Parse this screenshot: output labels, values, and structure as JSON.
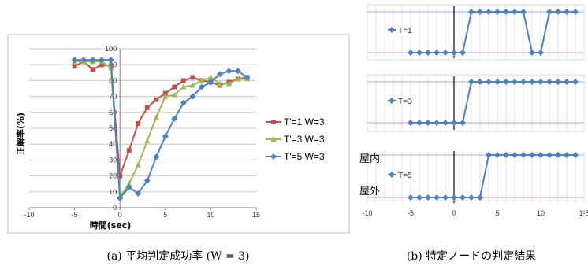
{
  "chart_data": [
    {
      "type": "line",
      "title": "",
      "xlabel": "時間(sec)",
      "ylabel": "正解率(%)",
      "xlim": [
        -10,
        15
      ],
      "ylim": [
        0,
        100
      ],
      "xticks": [
        -10,
        -5,
        0,
        5,
        10,
        15
      ],
      "yticks": [
        0,
        10,
        20,
        30,
        40,
        50,
        60,
        70,
        80,
        90,
        100
      ],
      "grid": "horizontal",
      "legend_position": "right",
      "series": [
        {
          "name": "T'=1 W=3",
          "color": "#c0504d",
          "marker": "square",
          "x": [
            -5,
            -4,
            -3,
            -2,
            -1,
            0,
            1,
            2,
            3,
            4,
            5,
            6,
            7,
            8,
            9,
            10,
            11,
            12,
            13,
            14
          ],
          "y": [
            89,
            92,
            87,
            90,
            89,
            20,
            36,
            53,
            63,
            68,
            72,
            76,
            80,
            82,
            80,
            79,
            77,
            79,
            81,
            82
          ]
        },
        {
          "name": "T'=3 W=3",
          "color": "#9bbb59",
          "marker": "triangle",
          "x": [
            -5,
            -4,
            -3,
            -2,
            -1,
            0,
            1,
            2,
            3,
            4,
            5,
            6,
            7,
            8,
            9,
            10,
            11,
            12,
            13,
            14
          ],
          "y": [
            92,
            92,
            92,
            92,
            88,
            7,
            15,
            27,
            42,
            57,
            70,
            71,
            76,
            77,
            80,
            82,
            78,
            78,
            81,
            81
          ]
        },
        {
          "name": "T'=5 W=3",
          "color": "#4f81bd",
          "marker": "diamond",
          "x": [
            -5,
            -4,
            -3,
            -2,
            -1,
            0,
            1,
            2,
            3,
            4,
            5,
            6,
            7,
            8,
            9,
            10,
            11,
            12,
            13,
            14
          ],
          "y": [
            93,
            93,
            93,
            93,
            93,
            6,
            13,
            9,
            17,
            32,
            45,
            56,
            66,
            70,
            76,
            79,
            84,
            86,
            86,
            82
          ]
        }
      ]
    },
    {
      "type": "line",
      "title": "",
      "xlim": [
        -10,
        15
      ],
      "xticks": [
        -10,
        -5,
        0,
        5,
        10,
        15
      ],
      "xtick_labels": [
        "-10",
        "-5",
        "0",
        "5",
        "10",
        "1¹5"
      ],
      "state_labels": {
        "upper": "屋内",
        "lower": "屋外"
      },
      "guide_colors": {
        "upper": "#8db4e2",
        "lower": "#e48ee4"
      },
      "series_color": "#4f81bd",
      "grid": "vertical",
      "panels": [
        {
          "name": "T=1",
          "x": [
            -5,
            -4,
            -3,
            -2,
            -1,
            0,
            1,
            2,
            3,
            4,
            5,
            6,
            7,
            8,
            9,
            10,
            11,
            12,
            13,
            14
          ],
          "state": [
            0,
            0,
            0,
            0,
            0,
            0,
            0,
            1,
            1,
            1,
            1,
            1,
            1,
            1,
            0,
            0,
            1,
            1,
            1,
            1
          ]
        },
        {
          "name": "T=3",
          "x": [
            -5,
            -4,
            -3,
            -2,
            -1,
            0,
            1,
            2,
            3,
            4,
            5,
            6,
            7,
            8,
            9,
            10,
            11,
            12,
            13,
            14
          ],
          "state": [
            0,
            0,
            0,
            0,
            0,
            0,
            0,
            1,
            1,
            1,
            1,
            1,
            1,
            1,
            1,
            1,
            1,
            1,
            1,
            1
          ]
        },
        {
          "name": "T=5",
          "x": [
            -5,
            -4,
            -3,
            -2,
            -1,
            0,
            1,
            2,
            3,
            4,
            5,
            6,
            7,
            8,
            9,
            10,
            11,
            12,
            13,
            14
          ],
          "state": [
            0,
            0,
            0,
            0,
            0,
            0,
            0,
            0,
            0,
            1,
            1,
            1,
            1,
            1,
            1,
            1,
            1,
            1,
            1,
            1
          ]
        }
      ]
    }
  ],
  "captions": {
    "a": "(a) 平均判定成功率 (W = 3)",
    "b": "(b) 特定ノードの判定結果"
  }
}
